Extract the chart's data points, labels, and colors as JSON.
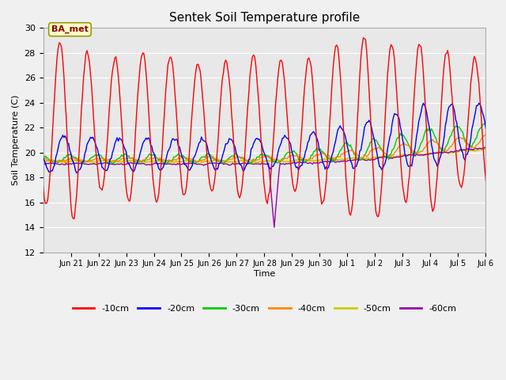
{
  "title": "Sentek Soil Temperature profile",
  "xlabel": "Time",
  "ylabel": "Soil Temperature (C)",
  "ylim": [
    12,
    30
  ],
  "yticks": [
    12,
    14,
    16,
    18,
    20,
    22,
    24,
    26,
    28,
    30
  ],
  "annotation_text": "BA_met",
  "fig_bg_color": "#f0f0f0",
  "plot_bg_color": "#e8e8e8",
  "grid_color": "#ffffff",
  "colors": {
    "-10cm": "#ff0000",
    "-20cm": "#0000ff",
    "-30cm": "#00cc00",
    "-40cm": "#ff8800",
    "-50cm": "#cccc00",
    "-60cm": "#9900aa"
  },
  "xlim_days": 16,
  "n_points": 384,
  "tick_positions": [
    1,
    2,
    3,
    4,
    5,
    6,
    7,
    8,
    9,
    10,
    11,
    12,
    13,
    14,
    15,
    16
  ],
  "tick_labels": [
    "Jun 21",
    "Jun 22",
    "Jun 23",
    "Jun 24",
    "Jun 25",
    "Jun 26",
    "Jun 27",
    "Jun 28",
    "Jun 29",
    "Jun 30",
    "Jul 1",
    "Jul 2",
    "Jul 3",
    "Jul 4",
    "Jul 5",
    "Jul 6"
  ]
}
